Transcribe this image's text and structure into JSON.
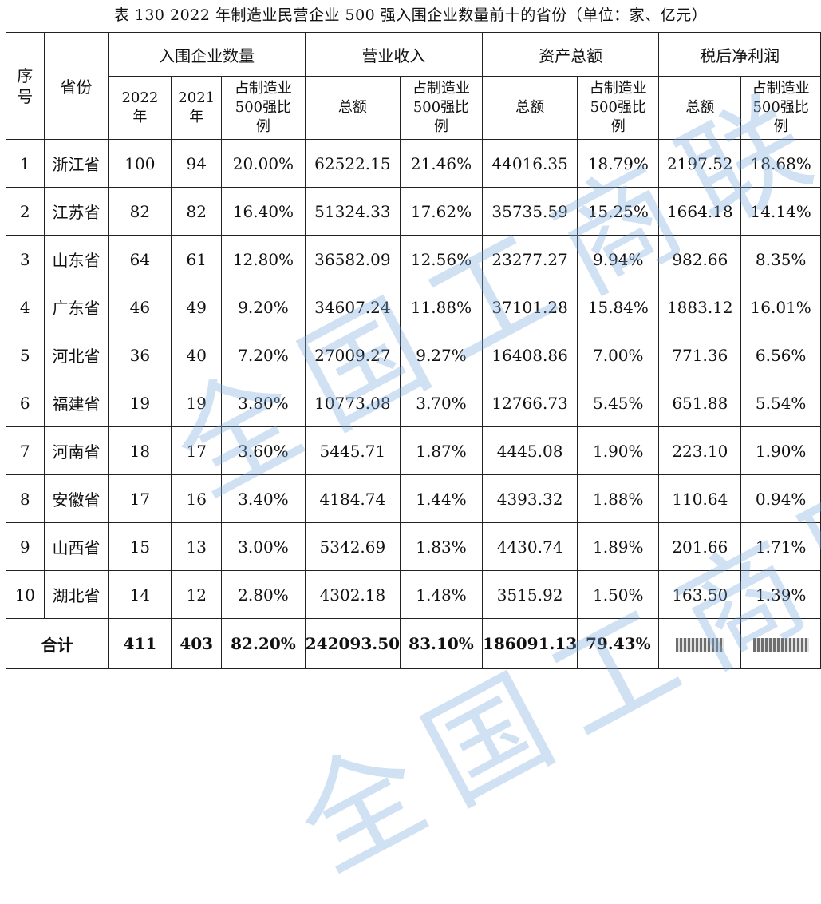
{
  "caption": "表 130   2022 年制造业民营企业 500 强入围企业数量前十的省份（单位：家、亿元）",
  "headers": {
    "seq": "序号",
    "province": "省份",
    "group_count": "入围企业数量",
    "group_revenue": "营业收入",
    "group_assets": "资产总额",
    "group_profit": "税后净利润",
    "y2022": "2022年",
    "y2021": "2021年",
    "share": "占制造业500强比例",
    "total": "总额",
    "share_pct": "占制造业500强比例"
  },
  "rows": [
    {
      "no": "1",
      "prov": "浙江省",
      "c22": "100",
      "c21": "94",
      "cs": "20.00%",
      "rev": "62522.15",
      "revs": "21.46%",
      "ast": "44016.35",
      "asts": "18.79%",
      "pft": "2197.52",
      "pfts": "18.68%"
    },
    {
      "no": "2",
      "prov": "江苏省",
      "c22": "82",
      "c21": "82",
      "cs": "16.40%",
      "rev": "51324.33",
      "revs": "17.62%",
      "ast": "35735.59",
      "asts": "15.25%",
      "pft": "1664.18",
      "pfts": "14.14%"
    },
    {
      "no": "3",
      "prov": "山东省",
      "c22": "64",
      "c21": "61",
      "cs": "12.80%",
      "rev": "36582.09",
      "revs": "12.56%",
      "ast": "23277.27",
      "asts": "9.94%",
      "pft": "982.66",
      "pfts": "8.35%"
    },
    {
      "no": "4",
      "prov": "广东省",
      "c22": "46",
      "c21": "49",
      "cs": "9.20%",
      "rev": "34607.24",
      "revs": "11.88%",
      "ast": "37101.28",
      "asts": "15.84%",
      "pft": "1883.12",
      "pfts": "16.01%"
    },
    {
      "no": "5",
      "prov": "河北省",
      "c22": "36",
      "c21": "40",
      "cs": "7.20%",
      "rev": "27009.27",
      "revs": "9.27%",
      "ast": "16408.86",
      "asts": "7.00%",
      "pft": "771.36",
      "pfts": "6.56%"
    },
    {
      "no": "6",
      "prov": "福建省",
      "c22": "19",
      "c21": "19",
      "cs": "3.80%",
      "rev": "10773.08",
      "revs": "3.70%",
      "ast": "12766.73",
      "asts": "5.45%",
      "pft": "651.88",
      "pfts": "5.54%"
    },
    {
      "no": "7",
      "prov": "河南省",
      "c22": "18",
      "c21": "17",
      "cs": "3.60%",
      "rev": "5445.71",
      "revs": "1.87%",
      "ast": "4445.08",
      "asts": "1.90%",
      "pft": "223.10",
      "pfts": "1.90%"
    },
    {
      "no": "8",
      "prov": "安徽省",
      "c22": "17",
      "c21": "16",
      "cs": "3.40%",
      "rev": "4184.74",
      "revs": "1.44%",
      "ast": "4393.32",
      "asts": "1.88%",
      "pft": "110.64",
      "pfts": "0.94%"
    },
    {
      "no": "9",
      "prov": "山西省",
      "c22": "15",
      "c21": "13",
      "cs": "3.00%",
      "rev": "5342.69",
      "revs": "1.83%",
      "ast": "4430.74",
      "asts": "1.89%",
      "pft": "201.66",
      "pfts": "1.71%"
    },
    {
      "no": "10",
      "prov": "湖北省",
      "c22": "14",
      "c21": "12",
      "cs": "2.80%",
      "rev": "4302.18",
      "revs": "1.48%",
      "ast": "3515.92",
      "asts": "1.50%",
      "pft": "163.50",
      "pfts": "1.39%"
    }
  ],
  "total": {
    "label": "合计",
    "c22": "411",
    "c21": "403",
    "cs": "82.20%",
    "rev": "242093.50",
    "revs": "83.10%",
    "ast": "186091.13",
    "asts": "79.43%"
  },
  "watermark": "全国工商联"
}
